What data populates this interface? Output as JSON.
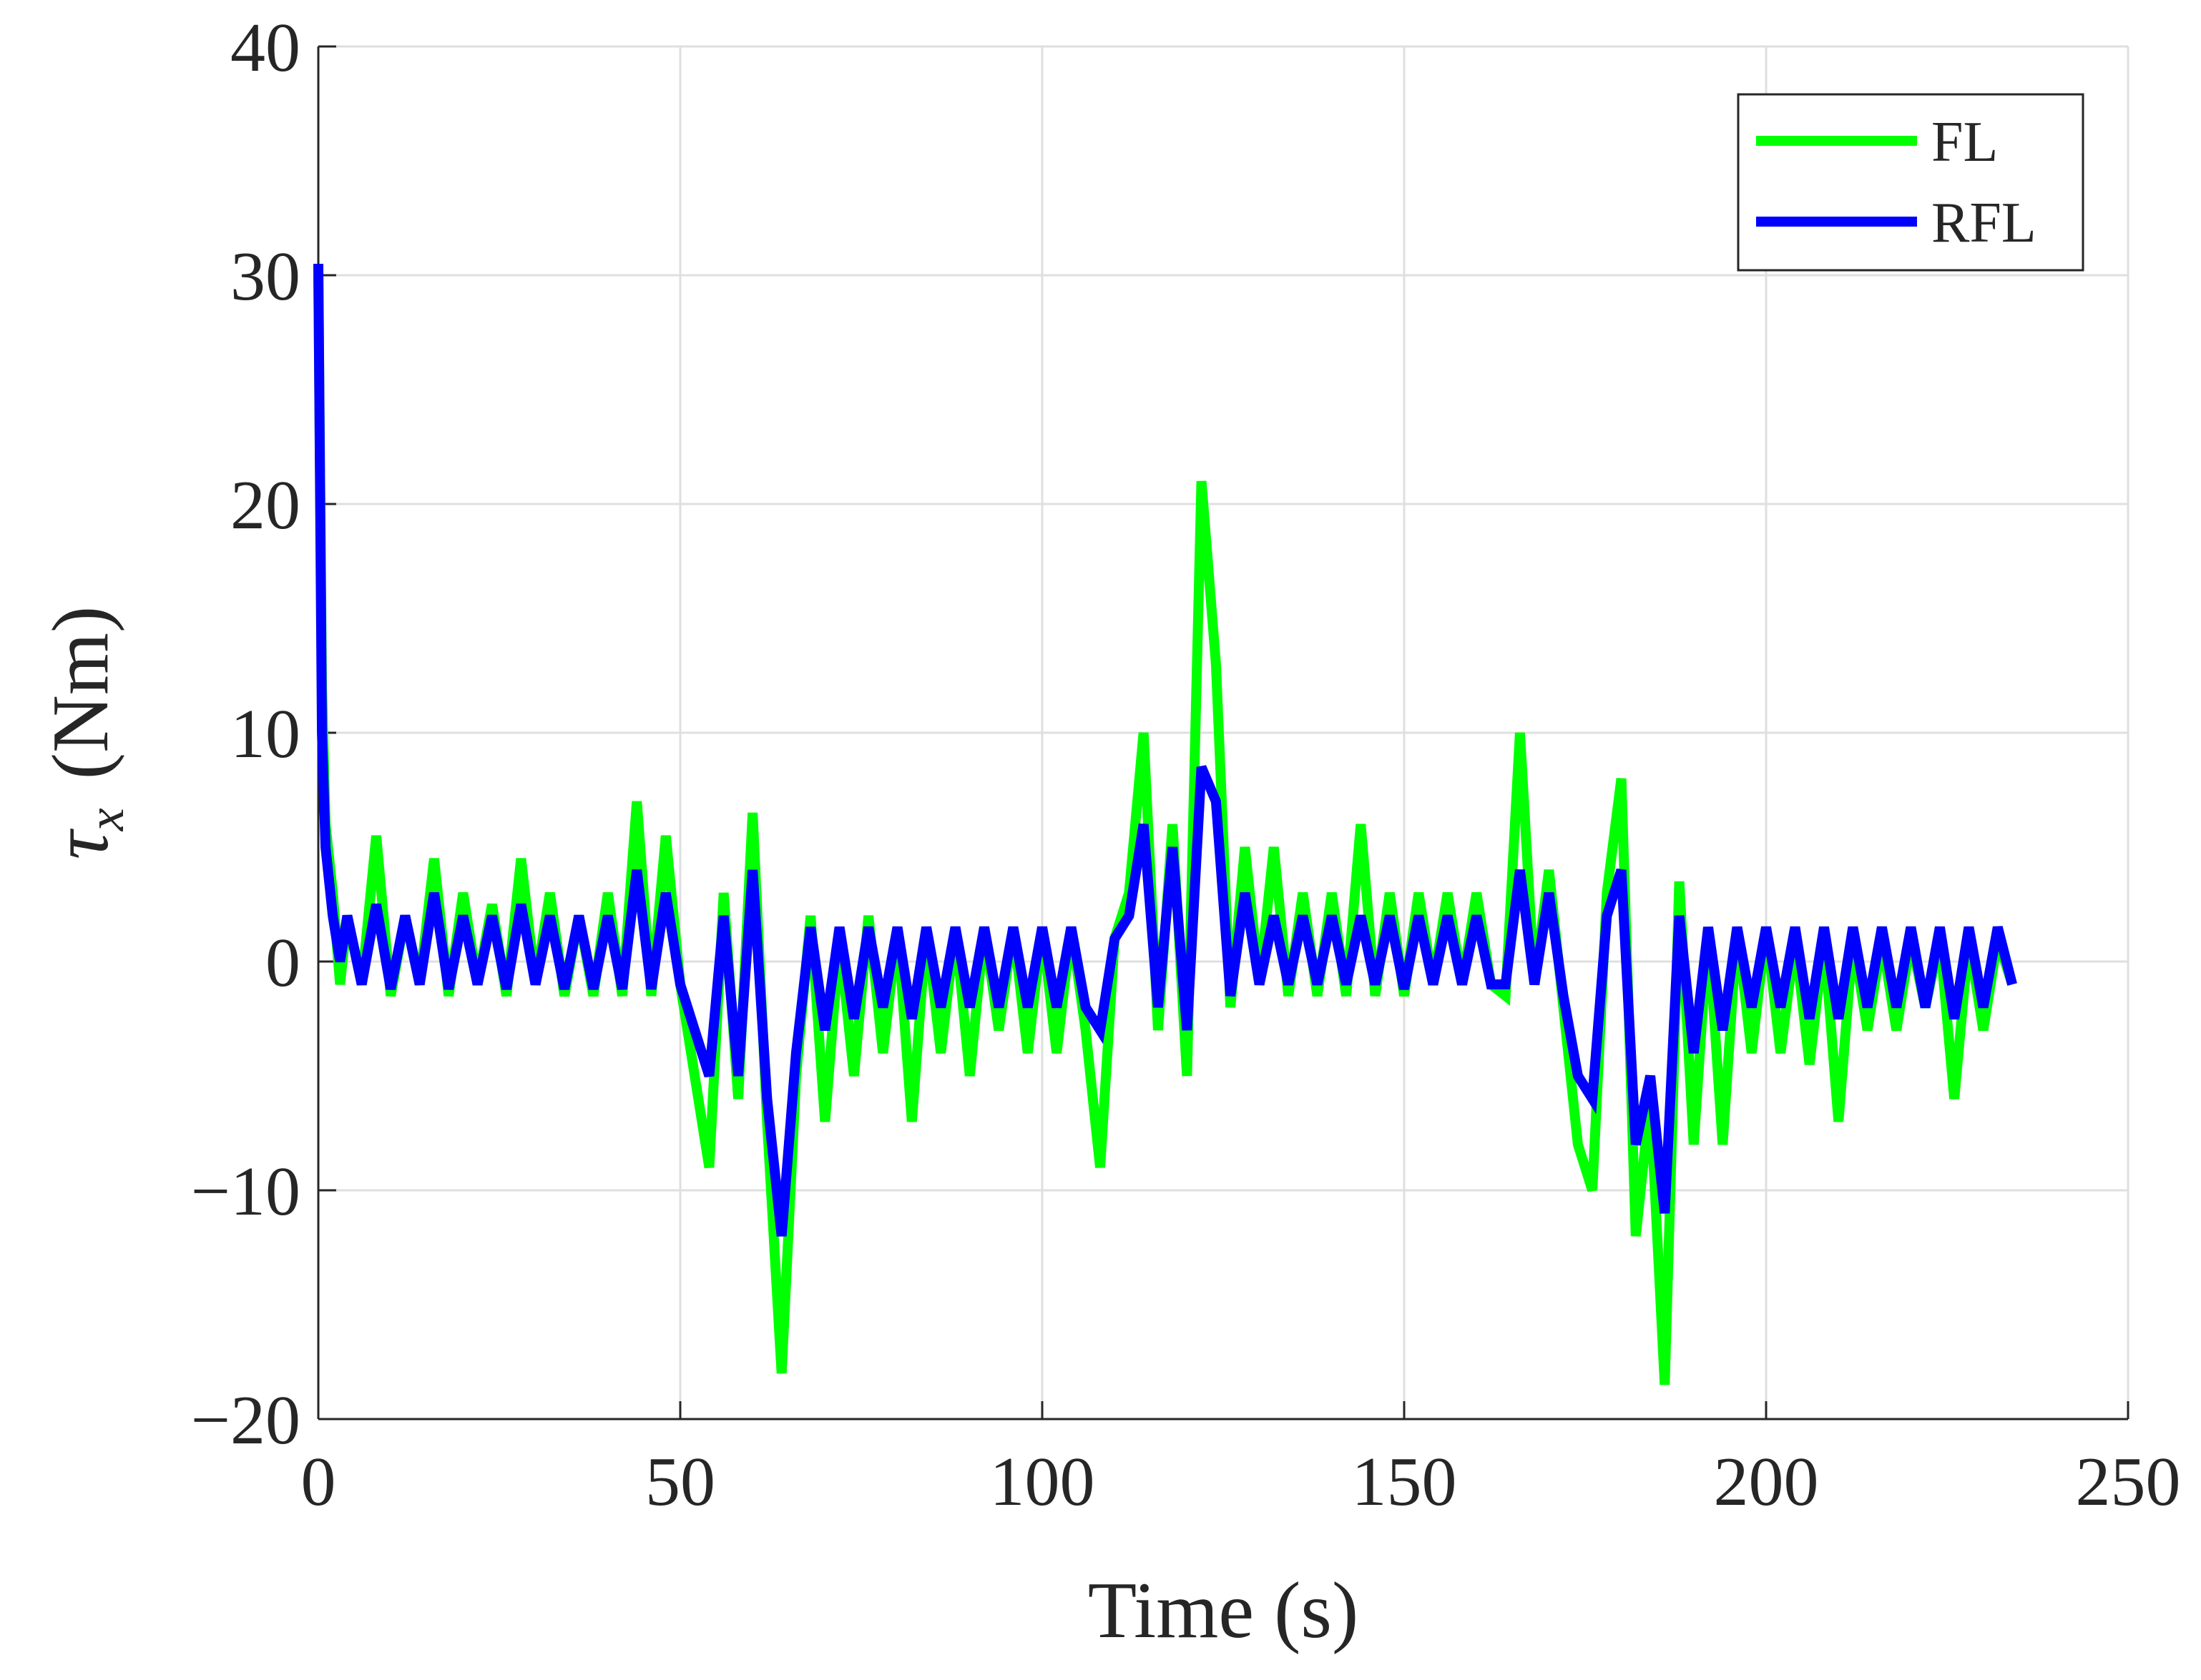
{
  "chart_data": {
    "type": "line",
    "xlabel": "Time (s)",
    "ylabel": [
      "τ",
      "x",
      "(Nm)"
    ],
    "x": [
      0,
      0.5,
      1,
      2,
      3,
      4,
      6,
      8,
      10,
      12,
      14,
      16,
      18,
      20,
      22,
      24,
      26,
      28,
      30,
      32,
      34,
      36,
      38,
      40,
      42,
      44,
      46,
      48,
      50,
      52,
      54,
      56,
      58,
      60,
      62,
      64,
      66,
      68,
      70,
      72,
      74,
      76,
      78,
      80,
      82,
      84,
      86,
      88,
      90,
      92,
      94,
      96,
      98,
      100,
      102,
      104,
      106,
      108,
      110,
      112,
      114,
      116,
      118,
      120,
      122,
      124,
      126,
      128,
      130,
      132,
      134,
      136,
      138,
      140,
      142,
      144,
      146,
      148,
      150,
      152,
      154,
      156,
      158,
      160,
      162,
      164,
      166,
      168,
      170,
      172,
      174,
      176,
      178,
      180,
      182,
      184,
      186,
      188,
      190,
      192,
      194,
      196,
      198,
      200,
      202,
      204,
      206,
      208,
      210,
      212,
      214,
      216,
      218,
      220,
      222,
      224,
      226,
      228,
      230,
      232,
      234
    ],
    "series": [
      {
        "name": "FL",
        "color": "#00ff00",
        "values": [
          30,
          12,
          6,
          3,
          -1,
          2,
          -1,
          5.5,
          -1.5,
          2,
          -1,
          4.5,
          -1.5,
          3,
          -1,
          2.5,
          -1.5,
          4.5,
          -1,
          3,
          -1.5,
          2,
          -1.5,
          3,
          -1.5,
          7,
          -1.5,
          5.5,
          -1,
          -5,
          -9,
          3,
          -6,
          6.5,
          -7,
          -18,
          -5,
          2,
          -7,
          1,
          -5,
          2,
          -4,
          1.5,
          -7,
          1.5,
          -4,
          1.5,
          -5,
          1.5,
          -3,
          1.5,
          -4,
          1.5,
          -4,
          1.5,
          -3,
          -9,
          1,
          3,
          10,
          -3,
          6,
          -5,
          21,
          13,
          -2,
          5,
          -1,
          5,
          -1.5,
          3,
          -1.5,
          3,
          -1.5,
          6,
          -1.5,
          3,
          -1.5,
          3,
          -1,
          3,
          -1,
          3,
          -1,
          -1.5,
          10,
          -1,
          4,
          -2,
          -8,
          -10,
          3,
          8,
          -12,
          -6,
          -18.5,
          3.5,
          -8,
          1.5,
          -8,
          1.5,
          -4,
          1.5,
          -4,
          1,
          -4.5,
          1,
          -7,
          1,
          -3,
          1,
          -3,
          1,
          -2,
          1,
          -6,
          1,
          -3,
          1,
          -1
        ]
      },
      {
        "name": "RFL",
        "color": "#0000ff",
        "values": [
          30.5,
          10,
          5,
          2,
          0,
          2,
          -1,
          2.5,
          -1.2,
          2,
          -1,
          3,
          -1.2,
          2,
          -1,
          2,
          -1.2,
          2.5,
          -1,
          2,
          -1.2,
          2,
          -1.2,
          2,
          -1.2,
          4,
          -1.2,
          3,
          -1,
          -3,
          -5,
          2,
          -5,
          4,
          -6,
          -12,
          -4,
          1.5,
          -3,
          1.5,
          -2.5,
          1.5,
          -2,
          1.5,
          -2.5,
          1.5,
          -2,
          1.5,
          -2,
          1.5,
          -2,
          1.5,
          -2,
          1.5,
          -2,
          1.5,
          -2,
          -3,
          1,
          2,
          6,
          -2,
          5,
          -3,
          8.5,
          7,
          -1.5,
          3,
          -1,
          2,
          -1,
          2,
          -1,
          2,
          -1,
          2,
          -1,
          2,
          -1.2,
          2,
          -1,
          2,
          -1,
          2,
          -1,
          -1,
          4,
          -1,
          3,
          -1.5,
          -5,
          -6,
          2,
          4,
          -8,
          -5,
          -11,
          2,
          -4,
          1.5,
          -3,
          1.5,
          -2,
          1.5,
          -2,
          1.5,
          -2.5,
          1.5,
          -2.5,
          1.5,
          -2,
          1.5,
          -2,
          1.5,
          -2,
          1.5,
          -2.5,
          1.5,
          -2,
          1.5,
          -1
        ]
      }
    ],
    "xlim": [
      0,
      250
    ],
    "xticks": [
      0,
      50,
      100,
      150,
      200,
      250
    ],
    "ylim": [
      -20,
      40
    ],
    "yticks": [
      {
        "value": -20,
        "label": "−20"
      },
      {
        "value": -10,
        "label": "−10"
      },
      0,
      10,
      20,
      30,
      40
    ],
    "grid": true,
    "legend": "upper right"
  }
}
